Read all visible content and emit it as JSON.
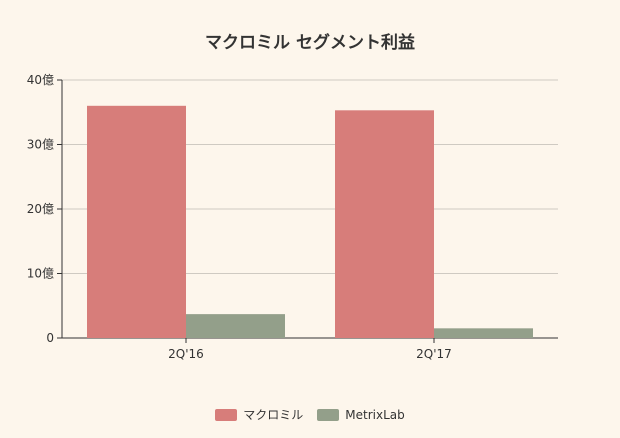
{
  "chart_data": {
    "type": "bar",
    "title": "マクロミル セグメント利益",
    "categories": [
      "2Q'16",
      "2Q'17"
    ],
    "series": [
      {
        "name": "マクロミル",
        "values": [
          36,
          35.3
        ],
        "color": "#d77d7a"
      },
      {
        "name": "MetrixLab",
        "values": [
          3.7,
          1.5
        ],
        "color": "#939f8a"
      }
    ],
    "ylim": [
      0,
      40
    ],
    "yticks": [
      {
        "value": 0,
        "label": "0"
      },
      {
        "value": 10,
        "label": "10億"
      },
      {
        "value": 20,
        "label": "20億"
      },
      {
        "value": 30,
        "label": "30億"
      },
      {
        "value": 40,
        "label": "40億"
      }
    ],
    "grid": true,
    "legend_position": "bottom"
  }
}
